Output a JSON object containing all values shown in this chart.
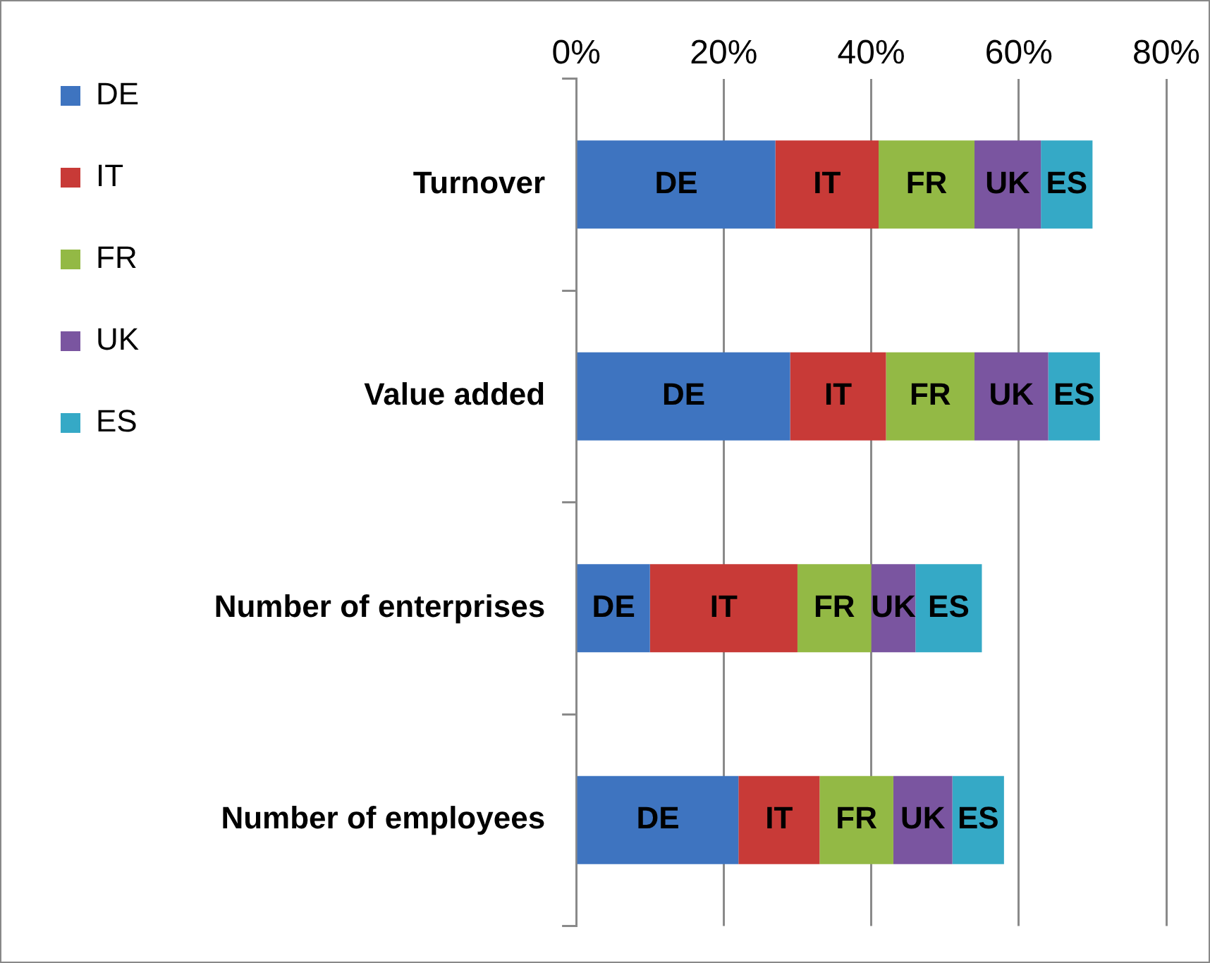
{
  "chart_data": {
    "type": "bar",
    "orientation": "horizontal",
    "stacked": true,
    "categories": [
      "Turnover",
      "Value added",
      "Number of enterprises",
      "Number of employees"
    ],
    "series": [
      {
        "name": "DE",
        "color": "#3e74c0",
        "values": [
          27,
          29,
          10,
          22
        ]
      },
      {
        "name": "IT",
        "color": "#c83a37",
        "values": [
          14,
          13,
          20,
          11
        ]
      },
      {
        "name": "FR",
        "color": "#93b945",
        "values": [
          13,
          12,
          10,
          10
        ]
      },
      {
        "name": "UK",
        "color": "#7a55a0",
        "values": [
          9,
          10,
          6,
          8
        ]
      },
      {
        "name": "ES",
        "color": "#35a9c6",
        "values": [
          7,
          7,
          9,
          7
        ]
      }
    ],
    "xlim": [
      0,
      80
    ],
    "xticks": [
      {
        "value": 0,
        "label": "0%"
      },
      {
        "value": 20,
        "label": "20%"
      },
      {
        "value": 40,
        "label": "40%"
      },
      {
        "value": 60,
        "label": "60%"
      },
      {
        "value": 80,
        "label": "80%"
      }
    ],
    "grid": "x",
    "legend": "left"
  }
}
